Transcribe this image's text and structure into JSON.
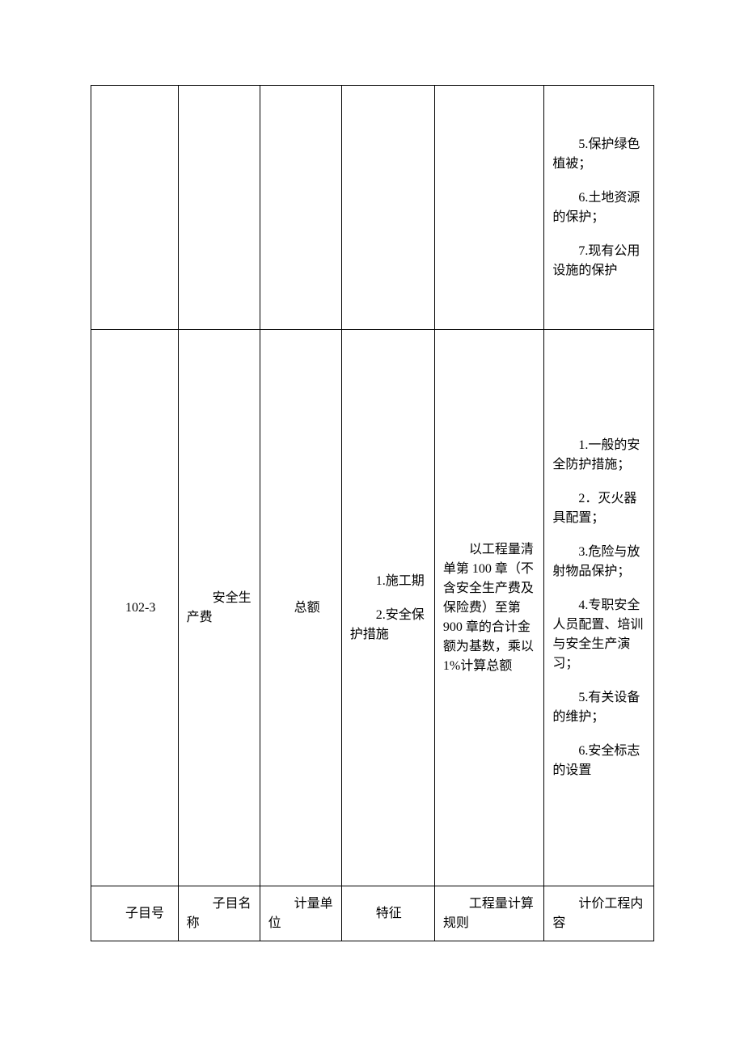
{
  "table": {
    "rows": [
      {
        "col1": "",
        "col2": "",
        "col3": "",
        "col4": "",
        "col5": "",
        "col6_items": [
          "5.保护绿色植被；",
          "6.土地资源的保护；",
          "7.现有公用设施的保护"
        ]
      },
      {
        "col1": "102-3",
        "col2": "安全生产费",
        "col3": "总额",
        "col4_items": [
          "1.施工期",
          "2.安全保护措施"
        ],
        "col5": "以工程量清单第 100 章（不含安全生产费及保险费）至第 900 章的合计金额为基数，乘以 1%计算总额",
        "col6_items": [
          "1.一般的安全防护措施；",
          "2．灭火器具配置；",
          "3.危险与放射物品保护；",
          "4.专职安全人员配置、培训与安全生产演习；",
          "5.有关设备的维护；",
          "6.安全标志的设置"
        ]
      },
      {
        "col1": "子目号",
        "col2": "子目名称",
        "col3": "计量单位",
        "col4": "特征",
        "col5": "工程量计算规则",
        "col6": "计价工程内容"
      }
    ]
  }
}
